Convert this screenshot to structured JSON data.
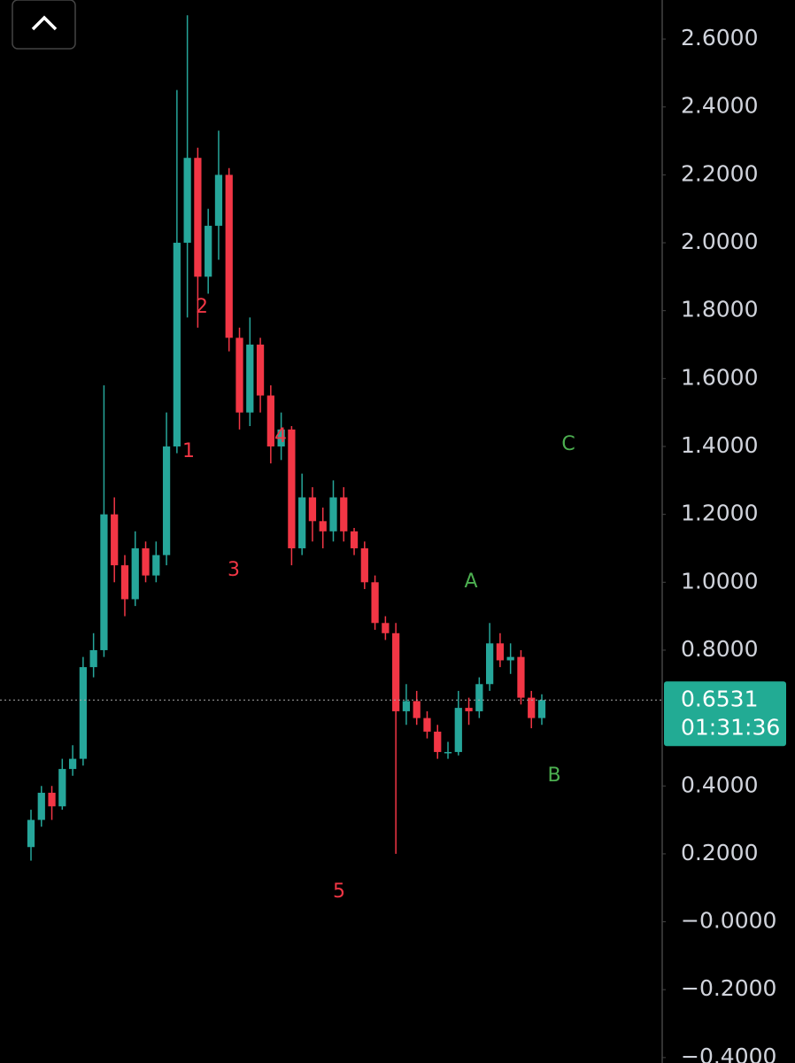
{
  "chart_data": {
    "type": "candlestick",
    "up_color": "#26a69a",
    "down_color": "#f23645",
    "open": [
      0.22,
      0.3,
      0.38,
      0.34,
      0.45,
      0.48,
      0.75,
      0.8,
      1.2,
      1.05,
      0.95,
      1.1,
      1.02,
      1.08,
      1.4,
      2.0,
      2.25,
      1.9,
      2.05,
      2.2,
      1.72,
      1.5,
      1.7,
      1.55,
      1.4,
      1.45,
      1.1,
      1.25,
      1.18,
      1.15,
      1.25,
      1.15,
      1.1,
      1.0,
      0.88,
      0.85,
      0.62,
      0.65,
      0.6,
      0.56,
      0.5,
      0.5,
      0.63,
      0.62,
      0.7,
      0.82,
      0.77,
      0.78,
      0.66,
      0.6
    ],
    "high": [
      0.33,
      0.4,
      0.4,
      0.48,
      0.52,
      0.78,
      0.85,
      1.58,
      1.25,
      1.08,
      1.15,
      1.12,
      1.12,
      1.5,
      2.45,
      2.67,
      2.28,
      2.1,
      2.33,
      2.22,
      1.75,
      1.78,
      1.72,
      1.58,
      1.5,
      1.46,
      1.32,
      1.28,
      1.22,
      1.3,
      1.28,
      1.16,
      1.12,
      1.02,
      0.9,
      0.88,
      0.7,
      0.68,
      0.62,
      0.58,
      0.53,
      0.68,
      0.66,
      0.72,
      0.88,
      0.85,
      0.82,
      0.8,
      0.68,
      0.67
    ],
    "low": [
      0.18,
      0.28,
      0.3,
      0.33,
      0.43,
      0.46,
      0.72,
      0.78,
      1.0,
      0.9,
      0.93,
      1.0,
      1.0,
      1.05,
      1.38,
      1.78,
      1.75,
      1.85,
      1.95,
      1.68,
      1.45,
      1.46,
      1.5,
      1.35,
      1.36,
      1.05,
      1.08,
      1.12,
      1.1,
      1.12,
      1.12,
      1.08,
      0.98,
      0.86,
      0.83,
      0.2,
      0.58,
      0.58,
      0.54,
      0.48,
      0.48,
      0.49,
      0.58,
      0.6,
      0.68,
      0.75,
      0.73,
      0.64,
      0.57,
      0.58
    ],
    "close": [
      0.3,
      0.38,
      0.34,
      0.45,
      0.48,
      0.75,
      0.8,
      1.2,
      1.05,
      0.95,
      1.1,
      1.02,
      1.08,
      1.4,
      2.0,
      2.25,
      1.9,
      2.05,
      2.2,
      1.72,
      1.5,
      1.7,
      1.55,
      1.4,
      1.45,
      1.1,
      1.25,
      1.18,
      1.15,
      1.25,
      1.15,
      1.1,
      1.0,
      0.88,
      0.85,
      0.62,
      0.65,
      0.6,
      0.56,
      0.5,
      0.5,
      0.63,
      0.62,
      0.7,
      0.82,
      0.77,
      0.78,
      0.66,
      0.6,
      0.6531
    ],
    "ylim": [
      -0.416,
      2.715
    ],
    "yticks": [
      {
        "value": 2.6,
        "label": "2.6000"
      },
      {
        "value": 2.4,
        "label": "2.4000"
      },
      {
        "value": 2.2,
        "label": "2.2000"
      },
      {
        "value": 2.0,
        "label": "2.0000"
      },
      {
        "value": 1.8,
        "label": "1.8000"
      },
      {
        "value": 1.6,
        "label": "1.6000"
      },
      {
        "value": 1.4,
        "label": "1.4000"
      },
      {
        "value": 1.2,
        "label": "1.2000"
      },
      {
        "value": 1.0,
        "label": "1.0000"
      },
      {
        "value": 0.8,
        "label": "0.8000"
      },
      {
        "value": 0.4,
        "label": "0.4000"
      },
      {
        "value": 0.2,
        "label": "0.2000"
      },
      {
        "value": 0,
        "label": "−0.0000"
      },
      {
        "value": -0.2,
        "label": "−0.2000"
      },
      {
        "value": -0.4,
        "label": "−0.4000"
      }
    ],
    "current_price": 0.6531,
    "price_label_color": "#22ab94",
    "countdown": "01:31:36",
    "annotations": [
      {
        "text": "1",
        "color": "#f23645"
      },
      {
        "text": "2",
        "color": "#f23645"
      },
      {
        "text": "3",
        "color": "#f23645"
      },
      {
        "text": "4",
        "color": "#f23645"
      },
      {
        "text": "5",
        "color": "#f23645"
      },
      {
        "text": "A",
        "color": "#4caf50"
      },
      {
        "text": "B",
        "color": "#4caf50"
      },
      {
        "text": "C",
        "color": "#4caf50"
      }
    ]
  }
}
